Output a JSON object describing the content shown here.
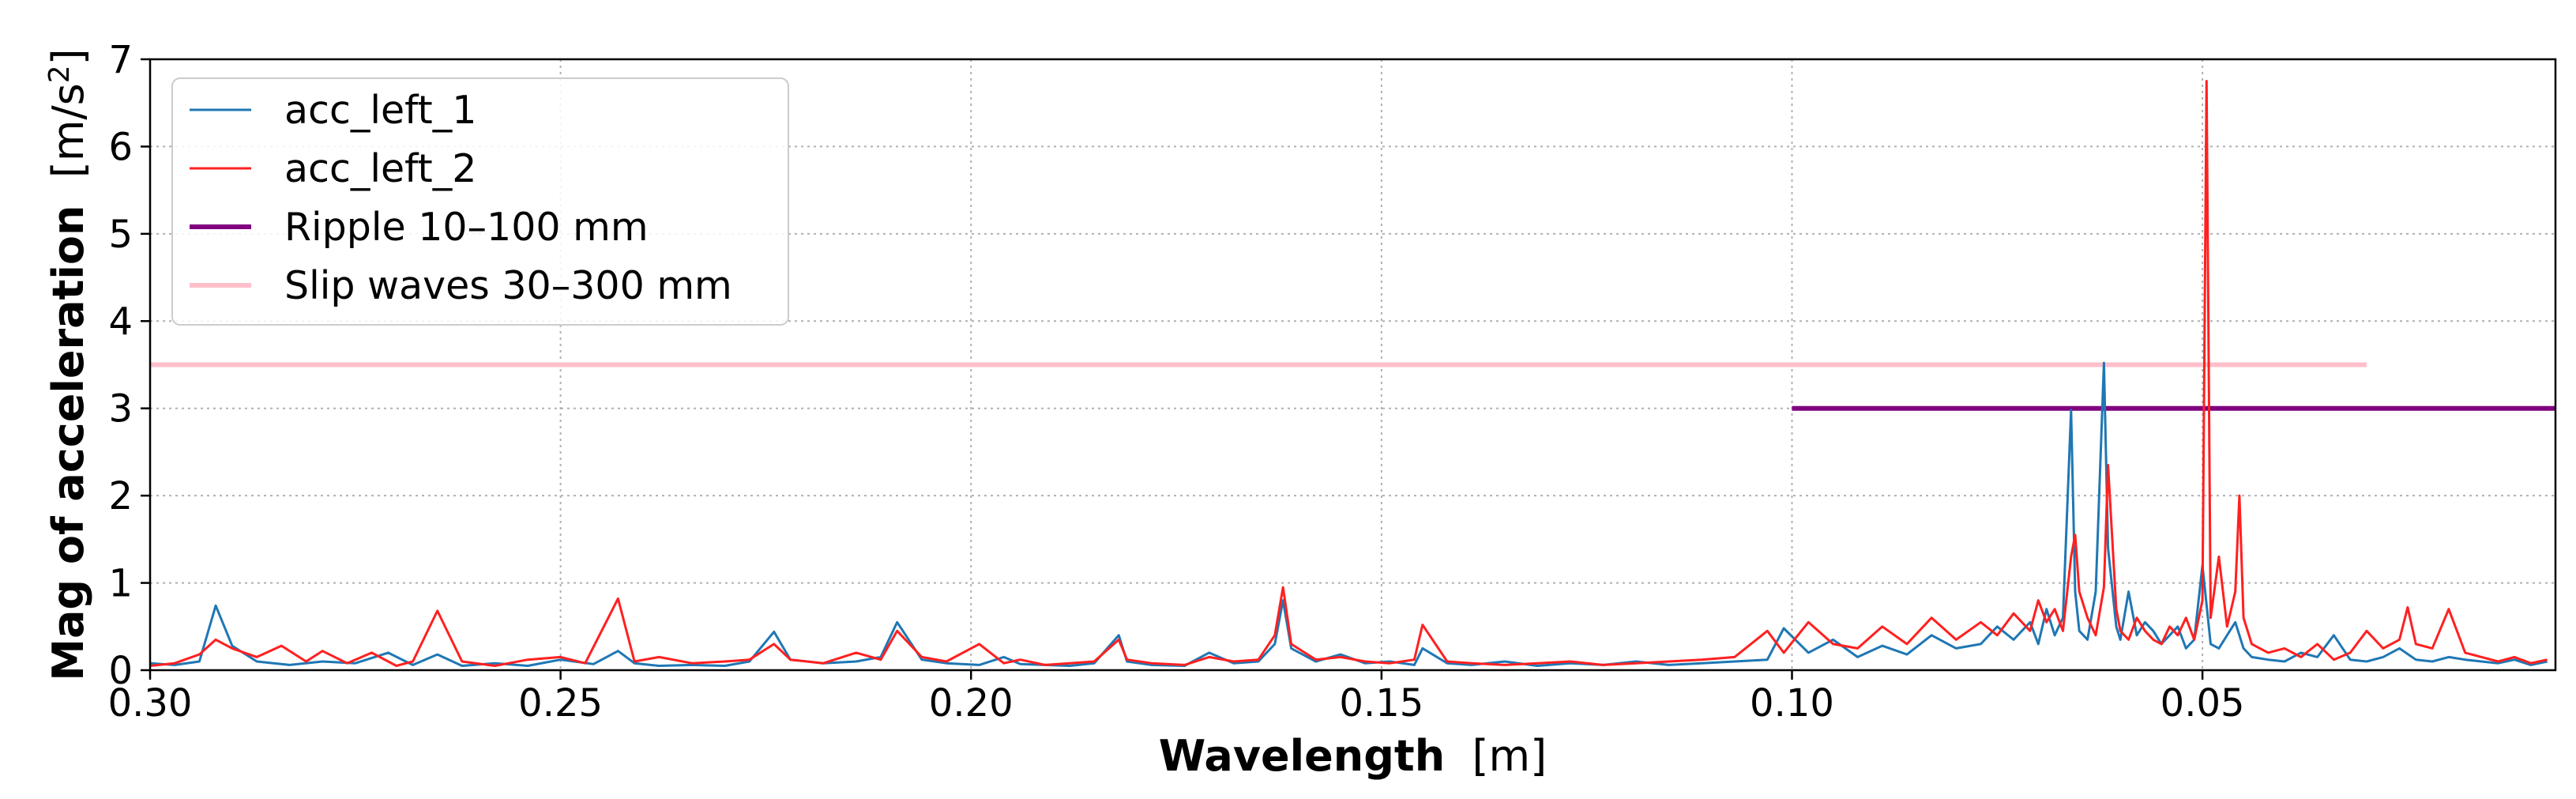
{
  "chart_data": {
    "type": "line",
    "title": "",
    "xlabel": {
      "bold": "Wavelength",
      "unit": "[m]"
    },
    "ylabel": {
      "bold": "Mag of acceleration",
      "unit": "[m/s",
      "unit_sup": "2",
      "unit_close": "]"
    },
    "x_inverted": true,
    "xlim": [
      0.3,
      0.007
    ],
    "ylim": [
      0,
      7
    ],
    "xticks": [
      0.3,
      0.25,
      0.2,
      0.15,
      0.1,
      0.05
    ],
    "xtick_labels": [
      "0.30",
      "0.25",
      "0.20",
      "0.15",
      "0.10",
      "0.05"
    ],
    "yticks": [
      0,
      1,
      2,
      3,
      4,
      5,
      6,
      7
    ],
    "ytick_labels": [
      "0",
      "1",
      "2",
      "3",
      "4",
      "5",
      "6",
      "7"
    ],
    "grid": true,
    "legend_position": "top-left",
    "series": [
      {
        "name": "acc_left_1",
        "color": "#1f77b4",
        "kind": "spectrum",
        "x": [
          0.3,
          0.297,
          0.294,
          0.292,
          0.29,
          0.287,
          0.283,
          0.279,
          0.275,
          0.271,
          0.268,
          0.265,
          0.262,
          0.258,
          0.254,
          0.25,
          0.246,
          0.243,
          0.241,
          0.238,
          0.234,
          0.23,
          0.227,
          0.224,
          0.222,
          0.218,
          0.214,
          0.211,
          0.209,
          0.206,
          0.203,
          0.199,
          0.196,
          0.194,
          0.191,
          0.188,
          0.185,
          0.182,
          0.181,
          0.178,
          0.174,
          0.171,
          0.168,
          0.165,
          0.163,
          0.162,
          0.161,
          0.158,
          0.155,
          0.152,
          0.149,
          0.146,
          0.145,
          0.142,
          0.139,
          0.135,
          0.131,
          0.127,
          0.123,
          0.119,
          0.115,
          0.111,
          0.107,
          0.103,
          0.101,
          0.098,
          0.095,
          0.092,
          0.089,
          0.086,
          0.083,
          0.08,
          0.077,
          0.075,
          0.073,
          0.071,
          0.07,
          0.069,
          0.068,
          0.067,
          0.066,
          0.0655,
          0.065,
          0.064,
          0.063,
          0.062,
          0.0615,
          0.0605,
          0.06,
          0.059,
          0.058,
          0.057,
          0.056,
          0.055,
          0.054,
          0.053,
          0.052,
          0.051,
          0.05,
          0.049,
          0.048,
          0.047,
          0.046,
          0.045,
          0.044,
          0.042,
          0.04,
          0.038,
          0.036,
          0.034,
          0.032,
          0.03,
          0.028,
          0.026,
          0.024,
          0.022,
          0.02,
          0.018,
          0.016,
          0.014,
          0.012,
          0.01,
          0.008
        ],
        "y": [
          0.08,
          0.06,
          0.1,
          0.74,
          0.28,
          0.1,
          0.06,
          0.1,
          0.08,
          0.2,
          0.06,
          0.18,
          0.05,
          0.08,
          0.05,
          0.12,
          0.07,
          0.22,
          0.08,
          0.05,
          0.06,
          0.05,
          0.1,
          0.44,
          0.12,
          0.08,
          0.1,
          0.15,
          0.55,
          0.12,
          0.08,
          0.06,
          0.15,
          0.07,
          0.06,
          0.05,
          0.08,
          0.4,
          0.1,
          0.06,
          0.05,
          0.2,
          0.08,
          0.1,
          0.3,
          0.8,
          0.25,
          0.1,
          0.18,
          0.08,
          0.1,
          0.06,
          0.25,
          0.08,
          0.06,
          0.1,
          0.05,
          0.08,
          0.06,
          0.1,
          0.06,
          0.08,
          0.1,
          0.12,
          0.48,
          0.2,
          0.35,
          0.15,
          0.28,
          0.18,
          0.4,
          0.25,
          0.3,
          0.5,
          0.35,
          0.55,
          0.3,
          0.7,
          0.4,
          0.6,
          2.98,
          0.9,
          0.45,
          0.35,
          0.9,
          3.52,
          1.4,
          0.5,
          0.35,
          0.9,
          0.4,
          0.55,
          0.45,
          0.3,
          0.4,
          0.5,
          0.25,
          0.35,
          1.2,
          0.3,
          0.25,
          0.4,
          0.55,
          0.25,
          0.15,
          0.12,
          0.1,
          0.2,
          0.15,
          0.4,
          0.12,
          0.1,
          0.15,
          0.25,
          0.12,
          0.1,
          0.15,
          0.12,
          0.1,
          0.08,
          0.12,
          0.06,
          0.1
        ]
      },
      {
        "name": "acc_left_2",
        "color": "#ff2020",
        "kind": "spectrum",
        "x": [
          0.3,
          0.297,
          0.294,
          0.292,
          0.29,
          0.287,
          0.284,
          0.281,
          0.279,
          0.276,
          0.273,
          0.27,
          0.268,
          0.265,
          0.262,
          0.258,
          0.254,
          0.25,
          0.247,
          0.243,
          0.241,
          0.238,
          0.234,
          0.23,
          0.227,
          0.224,
          0.222,
          0.218,
          0.214,
          0.211,
          0.209,
          0.206,
          0.203,
          0.199,
          0.196,
          0.194,
          0.191,
          0.188,
          0.185,
          0.182,
          0.181,
          0.178,
          0.174,
          0.171,
          0.168,
          0.165,
          0.163,
          0.162,
          0.161,
          0.158,
          0.155,
          0.152,
          0.149,
          0.146,
          0.145,
          0.142,
          0.139,
          0.135,
          0.131,
          0.127,
          0.123,
          0.119,
          0.115,
          0.111,
          0.107,
          0.103,
          0.101,
          0.098,
          0.095,
          0.092,
          0.089,
          0.086,
          0.083,
          0.08,
          0.077,
          0.075,
          0.073,
          0.071,
          0.07,
          0.069,
          0.068,
          0.067,
          0.066,
          0.0655,
          0.065,
          0.064,
          0.063,
          0.062,
          0.0615,
          0.0605,
          0.06,
          0.059,
          0.058,
          0.057,
          0.056,
          0.055,
          0.054,
          0.053,
          0.052,
          0.051,
          0.05,
          0.0495,
          0.049,
          0.048,
          0.047,
          0.046,
          0.0455,
          0.045,
          0.044,
          0.042,
          0.04,
          0.038,
          0.036,
          0.034,
          0.032,
          0.03,
          0.028,
          0.026,
          0.025,
          0.024,
          0.022,
          0.02,
          0.018,
          0.016,
          0.014,
          0.012,
          0.01,
          0.008
        ],
        "y": [
          0.05,
          0.08,
          0.18,
          0.35,
          0.25,
          0.15,
          0.28,
          0.1,
          0.22,
          0.08,
          0.2,
          0.05,
          0.1,
          0.68,
          0.1,
          0.05,
          0.12,
          0.15,
          0.08,
          0.82,
          0.1,
          0.15,
          0.08,
          0.1,
          0.12,
          0.3,
          0.12,
          0.08,
          0.2,
          0.12,
          0.45,
          0.15,
          0.1,
          0.3,
          0.08,
          0.12,
          0.06,
          0.08,
          0.1,
          0.35,
          0.12,
          0.08,
          0.06,
          0.15,
          0.1,
          0.12,
          0.4,
          0.95,
          0.3,
          0.12,
          0.15,
          0.1,
          0.08,
          0.12,
          0.52,
          0.1,
          0.08,
          0.06,
          0.08,
          0.1,
          0.06,
          0.08,
          0.1,
          0.12,
          0.15,
          0.45,
          0.2,
          0.55,
          0.3,
          0.25,
          0.5,
          0.3,
          0.6,
          0.35,
          0.55,
          0.4,
          0.65,
          0.45,
          0.8,
          0.55,
          0.7,
          0.45,
          1.3,
          1.55,
          0.9,
          0.6,
          0.4,
          0.95,
          2.35,
          0.7,
          0.45,
          0.35,
          0.6,
          0.45,
          0.35,
          0.3,
          0.5,
          0.4,
          0.6,
          0.35,
          0.8,
          6.75,
          0.6,
          1.3,
          0.5,
          0.9,
          2.0,
          0.6,
          0.3,
          0.2,
          0.25,
          0.15,
          0.3,
          0.12,
          0.2,
          0.45,
          0.25,
          0.35,
          0.72,
          0.3,
          0.25,
          0.7,
          0.2,
          0.15,
          0.1,
          0.15,
          0.08,
          0.12
        ]
      },
      {
        "name": "Ripple 10–100 mm",
        "color": "#800080",
        "kind": "hline",
        "x_range": [
          0.1,
          0.007
        ],
        "y": 3.0
      },
      {
        "name": "Slip waves 30–300 mm",
        "color": "#ffc0cb",
        "kind": "hline",
        "x_range": [
          0.3,
          0.03
        ],
        "y": 3.5
      }
    ]
  }
}
